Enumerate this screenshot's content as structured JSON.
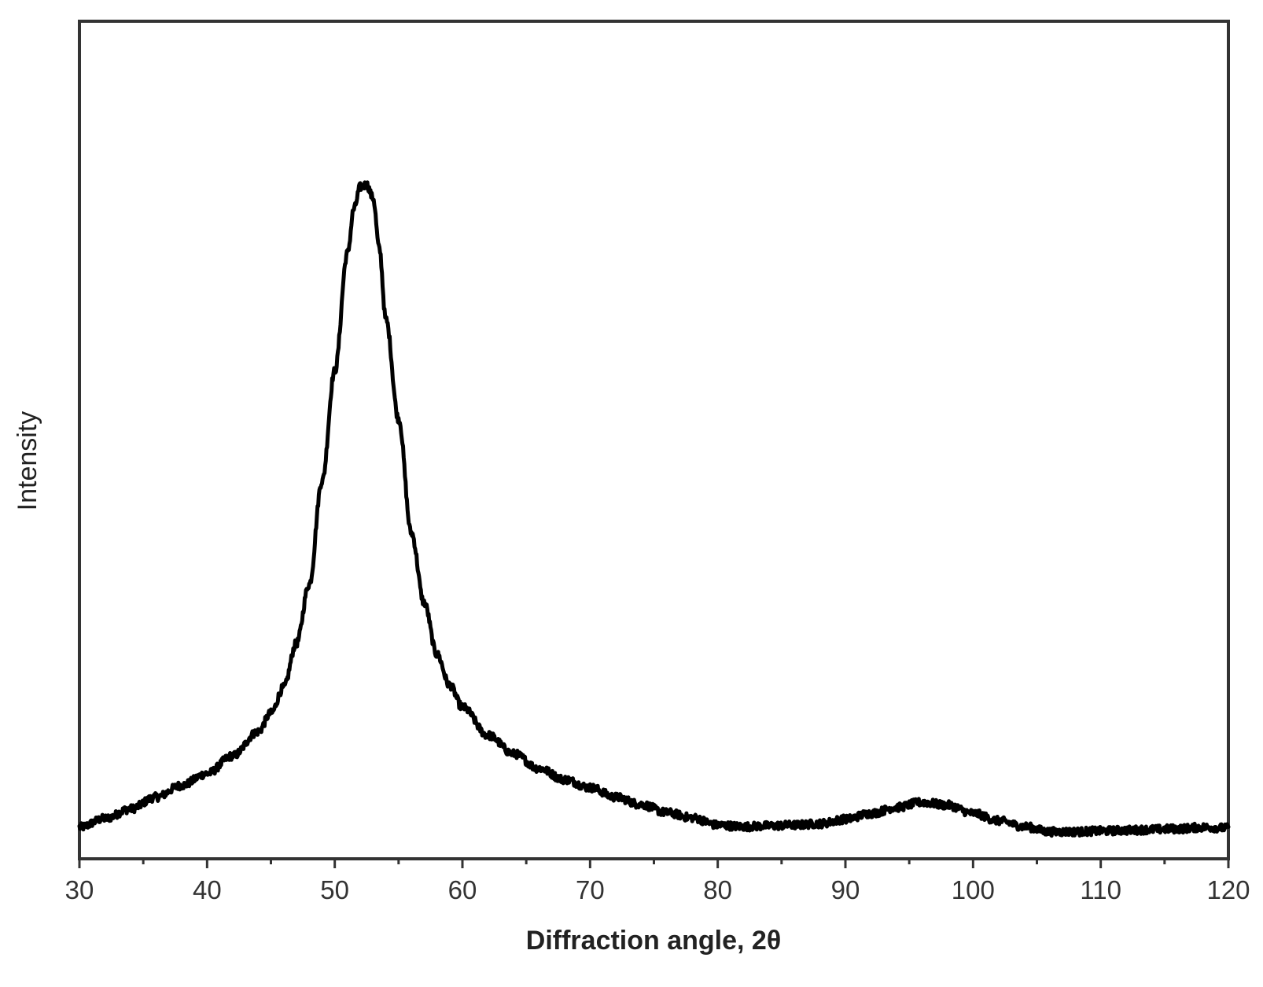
{
  "chart_data": {
    "type": "line",
    "title": "",
    "xlabel": "Diffraction angle, 2θ",
    "ylabel": "Intensity",
    "xlim": [
      30,
      120
    ],
    "ylim": [
      0,
      100
    ],
    "y_ticks_shown": false,
    "grid": false,
    "legend": "none",
    "x_ticks": [
      30,
      40,
      50,
      60,
      70,
      80,
      90,
      100,
      110,
      120
    ],
    "x_tick_labels": [
      "30",
      "40",
      "50",
      "60",
      "70",
      "80",
      "90",
      "100",
      "110",
      "120"
    ],
    "x_minor_ticks": [
      35,
      45,
      55,
      65,
      75,
      85,
      95,
      105,
      115
    ],
    "line_color": "#000000",
    "series": [
      {
        "x": [
          30,
          32,
          34,
          36,
          38,
          40,
          42,
          44,
          45,
          46,
          47,
          48,
          49,
          50,
          51,
          51.5,
          52,
          52.5,
          53,
          53.5,
          54,
          55,
          56,
          57,
          58,
          59,
          60,
          62,
          64,
          66,
          68,
          70,
          72,
          74,
          76,
          78,
          80,
          82,
          84,
          86,
          88,
          90,
          92,
          94,
          96,
          98,
          100,
          102,
          104,
          106,
          108,
          110,
          112,
          114,
          116,
          118,
          120
        ],
        "y": [
          1.5,
          2.7,
          4.0,
          5.6,
          7.2,
          8.8,
          11.2,
          14.5,
          17.0,
          20.5,
          26.5,
          34.5,
          48.5,
          63.5,
          79.5,
          85.5,
          88.5,
          88.8,
          87.0,
          80.0,
          70.5,
          57.0,
          41.5,
          32.0,
          25.0,
          20.8,
          17.8,
          14.0,
          11.5,
          9.5,
          8.0,
          6.9,
          5.6,
          4.6,
          3.5,
          2.8,
          1.8,
          1.6,
          1.7,
          1.8,
          2.0,
          2.6,
          3.4,
          4.2,
          4.9,
          4.5,
          3.4,
          2.4,
          1.6,
          0.9,
          0.9,
          1.0,
          1.1,
          1.2,
          1.3,
          1.5,
          1.4
        ]
      }
    ]
  }
}
